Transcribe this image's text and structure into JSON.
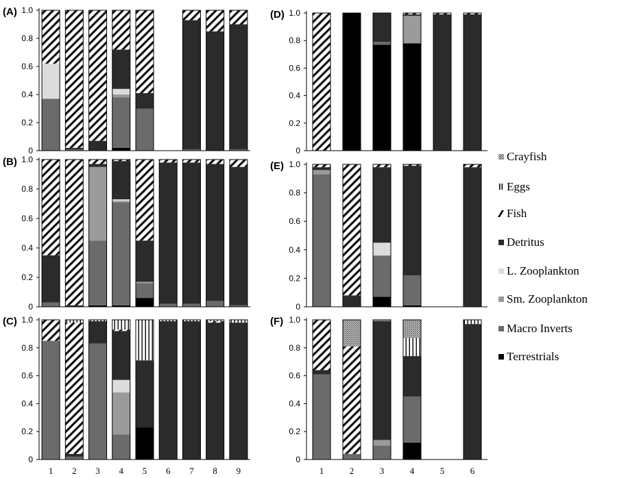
{
  "legend": [
    {
      "name": "Crayfish",
      "key": "crayfish"
    },
    {
      "name": "Eggs",
      "key": "eggs"
    },
    {
      "name": "Fish",
      "key": "fish"
    },
    {
      "name": "Detritus",
      "key": "detritus"
    },
    {
      "name": "L. Zooplankton",
      "key": "lzoo"
    },
    {
      "name": "Sm. Zooplankton",
      "key": "szoo"
    },
    {
      "name": "Macro Inverts",
      "key": "macro"
    },
    {
      "name": "Terrestrials",
      "key": "terr"
    }
  ],
  "colors": {
    "terr": "#000000",
    "macro": "#6b6b6b",
    "szoo": "#9b9b9b",
    "lzoo": "#dcdcdc",
    "detritus": "#2b2b2b",
    "fish": "hatch",
    "eggs": "vertical-lines",
    "crayfish": "stipple"
  },
  "chart_data": [
    {
      "type": "bar",
      "stacked": true,
      "panel": "(A)",
      "categories": [
        "1",
        "2",
        "3",
        "4",
        "5",
        "6",
        "7",
        "8",
        "9"
      ],
      "ylim": [
        0,
        1
      ],
      "yticks": [
        "0",
        "0.2",
        "0.4",
        "0.6",
        "0.8",
        "1.0"
      ],
      "series": [
        {
          "name": "Terrestrials",
          "values": [
            0,
            0,
            0,
            0.02,
            0,
            0,
            0,
            0,
            0
          ]
        },
        {
          "name": "Macro Inverts",
          "values": [
            0.37,
            0.01,
            0,
            0.36,
            0.3,
            0,
            0.01,
            0,
            0.01
          ]
        },
        {
          "name": "Sm. Zooplankton",
          "values": [
            0,
            0,
            0,
            0.02,
            0,
            0,
            0,
            0,
            0
          ]
        },
        {
          "name": "L. Zooplankton",
          "values": [
            0.25,
            0,
            0,
            0.04,
            0,
            0,
            0,
            0,
            0
          ]
        },
        {
          "name": "Detritus",
          "values": [
            0,
            0.01,
            0.07,
            0.28,
            0.11,
            0,
            0.92,
            0.85,
            0.89
          ]
        },
        {
          "name": "Fish",
          "values": [
            0.38,
            0.98,
            0.93,
            0.28,
            0.59,
            0,
            0.07,
            0.15,
            0.1
          ]
        },
        {
          "name": "Eggs",
          "values": [
            0,
            0,
            0,
            0,
            0,
            0,
            0,
            0,
            0
          ]
        },
        {
          "name": "Crayfish",
          "values": [
            0,
            0,
            0,
            0,
            0,
            0,
            0,
            0,
            0
          ]
        }
      ]
    },
    {
      "type": "bar",
      "stacked": true,
      "panel": "(B)",
      "categories": [
        "1",
        "2",
        "3",
        "4",
        "5",
        "6",
        "7",
        "8",
        "9"
      ],
      "ylim": [
        0,
        1
      ],
      "yticks": [
        "0",
        "0.2",
        "0.4",
        "0.6",
        "0.8",
        "1.0"
      ],
      "series": [
        {
          "name": "Terrestrials",
          "values": [
            0,
            0,
            0.01,
            0.01,
            0.06,
            0,
            0,
            0,
            0
          ]
        },
        {
          "name": "Macro Inverts",
          "values": [
            0.03,
            0,
            0.44,
            0.7,
            0.1,
            0.02,
            0.02,
            0.04,
            0.01
          ]
        },
        {
          "name": "Sm. Zooplankton",
          "values": [
            0,
            0,
            0.5,
            0.01,
            0.01,
            0,
            0,
            0,
            0
          ]
        },
        {
          "name": "L. Zooplankton",
          "values": [
            0,
            0,
            0,
            0.01,
            0,
            0,
            0,
            0,
            0
          ]
        },
        {
          "name": "Detritus",
          "values": [
            0.32,
            0.01,
            0.02,
            0.26,
            0.28,
            0.96,
            0.96,
            0.93,
            0.94
          ]
        },
        {
          "name": "Fish",
          "values": [
            0.65,
            0.99,
            0.03,
            0.01,
            0.55,
            0.02,
            0.02,
            0.03,
            0.05
          ]
        },
        {
          "name": "Eggs",
          "values": [
            0,
            0,
            0,
            0,
            0,
            0,
            0,
            0,
            0
          ]
        },
        {
          "name": "Crayfish",
          "values": [
            0,
            0,
            0,
            0,
            0,
            0,
            0,
            0,
            0
          ]
        }
      ]
    },
    {
      "type": "bar",
      "stacked": true,
      "panel": "(C)",
      "categories": [
        "1",
        "2",
        "3",
        "4",
        "5",
        "6",
        "7",
        "8",
        "9"
      ],
      "ylim": [
        0,
        1
      ],
      "yticks": [
        "0",
        "0.2",
        "0.4",
        "0.6",
        "0.8",
        "1.0"
      ],
      "series": [
        {
          "name": "Terrestrials",
          "values": [
            0,
            0,
            0,
            0,
            0.23,
            0,
            0,
            0,
            0
          ]
        },
        {
          "name": "Macro Inverts",
          "values": [
            0.85,
            0.02,
            0.83,
            0.18,
            0,
            0,
            0,
            0,
            0
          ]
        },
        {
          "name": "Sm. Zooplankton",
          "values": [
            0,
            0,
            0,
            0.3,
            0,
            0,
            0,
            0,
            0
          ]
        },
        {
          "name": "L. Zooplankton",
          "values": [
            0,
            0,
            0,
            0.09,
            0,
            0,
            0,
            0,
            0
          ]
        },
        {
          "name": "Detritus",
          "values": [
            0,
            0.02,
            0.16,
            0.35,
            0.48,
            0.99,
            0.99,
            0.98,
            0.98
          ]
        },
        {
          "name": "Fish",
          "values": [
            0.15,
            0.94,
            0,
            0.01,
            0,
            0,
            0,
            0.01,
            0
          ]
        },
        {
          "name": "Eggs",
          "values": [
            0,
            0.02,
            0.01,
            0.07,
            0.29,
            0.01,
            0.01,
            0.01,
            0.02
          ]
        },
        {
          "name": "Crayfish",
          "values": [
            0,
            0,
            0,
            0,
            0,
            0,
            0,
            0,
            0
          ]
        }
      ]
    },
    {
      "type": "bar",
      "stacked": true,
      "panel": "(D)",
      "categories": [
        "1",
        "2",
        "3",
        "4",
        "5",
        "6"
      ],
      "ylim": [
        0,
        1
      ],
      "yticks": [
        "0",
        "0.2",
        "0.4",
        "0.6",
        "0.8",
        "1.0"
      ],
      "series": [
        {
          "name": "Terrestrials",
          "values": [
            0,
            1.0,
            0.77,
            0.78,
            0,
            0
          ]
        },
        {
          "name": "Macro Inverts",
          "values": [
            0,
            0,
            0.02,
            0,
            0,
            0
          ]
        },
        {
          "name": "Sm. Zooplankton",
          "values": [
            0,
            0,
            0,
            0.2,
            0,
            0
          ]
        },
        {
          "name": "L. Zooplankton",
          "values": [
            0,
            0,
            0,
            0,
            0,
            0
          ]
        },
        {
          "name": "Detritus",
          "values": [
            0,
            0,
            0.21,
            0.01,
            0.99,
            0.99
          ]
        },
        {
          "name": "Fish",
          "values": [
            1.0,
            0,
            0,
            0.01,
            0.01,
            0.01
          ]
        },
        {
          "name": "Eggs",
          "values": [
            0,
            0,
            0,
            0,
            0,
            0
          ]
        },
        {
          "name": "Crayfish",
          "values": [
            0,
            0,
            0,
            0,
            0,
            0
          ]
        }
      ]
    },
    {
      "type": "bar",
      "stacked": true,
      "panel": "(E)",
      "categories": [
        "1",
        "2",
        "3",
        "4",
        "5",
        "6"
      ],
      "ylim": [
        0,
        1
      ],
      "yticks": [
        "0",
        "0.2",
        "0.4",
        "0.6",
        "0.8",
        "1.0"
      ],
      "series": [
        {
          "name": "Terrestrials",
          "values": [
            0,
            0,
            0.07,
            0.01,
            0,
            0
          ]
        },
        {
          "name": "Macro Inverts",
          "values": [
            0.93,
            0,
            0.29,
            0.21,
            0,
            0
          ]
        },
        {
          "name": "Sm. Zooplankton",
          "values": [
            0.03,
            0,
            0,
            0,
            0,
            0
          ]
        },
        {
          "name": "L. Zooplankton",
          "values": [
            0,
            0,
            0.09,
            0,
            0,
            0
          ]
        },
        {
          "name": "Detritus",
          "values": [
            0.02,
            0.08,
            0.53,
            0.77,
            0,
            0.98
          ]
        },
        {
          "name": "Fish",
          "values": [
            0.02,
            0.92,
            0.02,
            0.01,
            0,
            0.02
          ]
        },
        {
          "name": "Eggs",
          "values": [
            0,
            0,
            0,
            0,
            0,
            0
          ]
        },
        {
          "name": "Crayfish",
          "values": [
            0,
            0,
            0,
            0,
            0,
            0
          ]
        }
      ]
    },
    {
      "type": "bar",
      "stacked": true,
      "panel": "(F)",
      "categories": [
        "1",
        "2",
        "3",
        "4",
        "5",
        "6"
      ],
      "ylim": [
        0,
        1
      ],
      "yticks": [
        "0",
        "0.2",
        "0.4",
        "0.6",
        "0.8",
        "1.0"
      ],
      "series": [
        {
          "name": "Terrestrials",
          "values": [
            0,
            0,
            0,
            0.12,
            0,
            0
          ]
        },
        {
          "name": "Macro Inverts",
          "values": [
            0.61,
            0.04,
            0.1,
            0.33,
            0,
            0
          ]
        },
        {
          "name": "Sm. Zooplankton",
          "values": [
            0,
            0,
            0.04,
            0,
            0,
            0
          ]
        },
        {
          "name": "L. Zooplankton",
          "values": [
            0,
            0,
            0,
            0,
            0,
            0
          ]
        },
        {
          "name": "Detritus",
          "values": [
            0.03,
            0,
            0.85,
            0.29,
            0,
            0.97
          ]
        },
        {
          "name": "Fish",
          "values": [
            0.36,
            0.77,
            0,
            0,
            0,
            0
          ]
        },
        {
          "name": "Eggs",
          "values": [
            0,
            0,
            0,
            0.13,
            0,
            0.03
          ]
        },
        {
          "name": "Crayfish",
          "values": [
            0,
            0.19,
            0.01,
            0.13,
            0,
            0
          ]
        }
      ]
    }
  ]
}
